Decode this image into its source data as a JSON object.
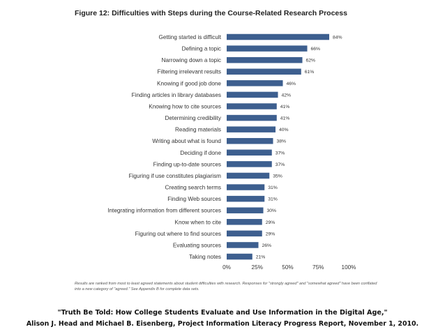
{
  "chart_data": {
    "type": "bar",
    "orientation": "horizontal",
    "title": "Figure 12: Difficulties with Steps during the Course-Related Research Process",
    "categories": [
      "Getting started is difficult",
      "Defining a topic",
      "Narrowing down a topic",
      "Filtering irrelevant results",
      "Knowing if good job done",
      "Finding articles in library databases",
      "Knowing how to cite sources",
      "Determining credibility",
      "Reading materials",
      "Writing about what is found",
      "Deciding if done",
      "Finding up-to-date sources",
      "Figuring if use constitutes plagiarism",
      "Creating search terms",
      "Finding Web sources",
      "Integrating information from different sources",
      "Know when to cite",
      "Figuring out where to find sources",
      "Evaluating sources",
      "Taking notes"
    ],
    "values": [
      84,
      66,
      62,
      61,
      46,
      42,
      41,
      41,
      40,
      38,
      37,
      37,
      35,
      31,
      31,
      30,
      29,
      29,
      26,
      21
    ],
    "value_labels": [
      "84%",
      "66%",
      "62%",
      "61%",
      "46%",
      "42%",
      "41%",
      "41%",
      "40%",
      "38%",
      "37%",
      "37%",
      "35%",
      "31%",
      "31%",
      "30%",
      "29%",
      "29%",
      "26%",
      "21%"
    ],
    "xticks": [
      0,
      25,
      50,
      75,
      100
    ],
    "xtick_labels": [
      "0%",
      "25%",
      "50%",
      "75%",
      "100%"
    ],
    "xlim": [
      0,
      100
    ],
    "xlabel": "",
    "ylabel": "",
    "grid": false,
    "bar_color": "#3d5f8f"
  },
  "note": "Results are ranked from most to least agreed statements about student difficulties with research. Responses for \"strongly agreed\" and \"somewhat agreed\" have been conflated into a new category of \"agreed.\" See Appendix B for complete data sets.",
  "citation": {
    "title": "\"Truth Be Told: How College Students Evaluate and Use Information in the Digital Age,\"",
    "source": "Alison J. Head and Michael B. Eisenberg, Project Information Literacy Progress Report, November 1, 2010."
  }
}
